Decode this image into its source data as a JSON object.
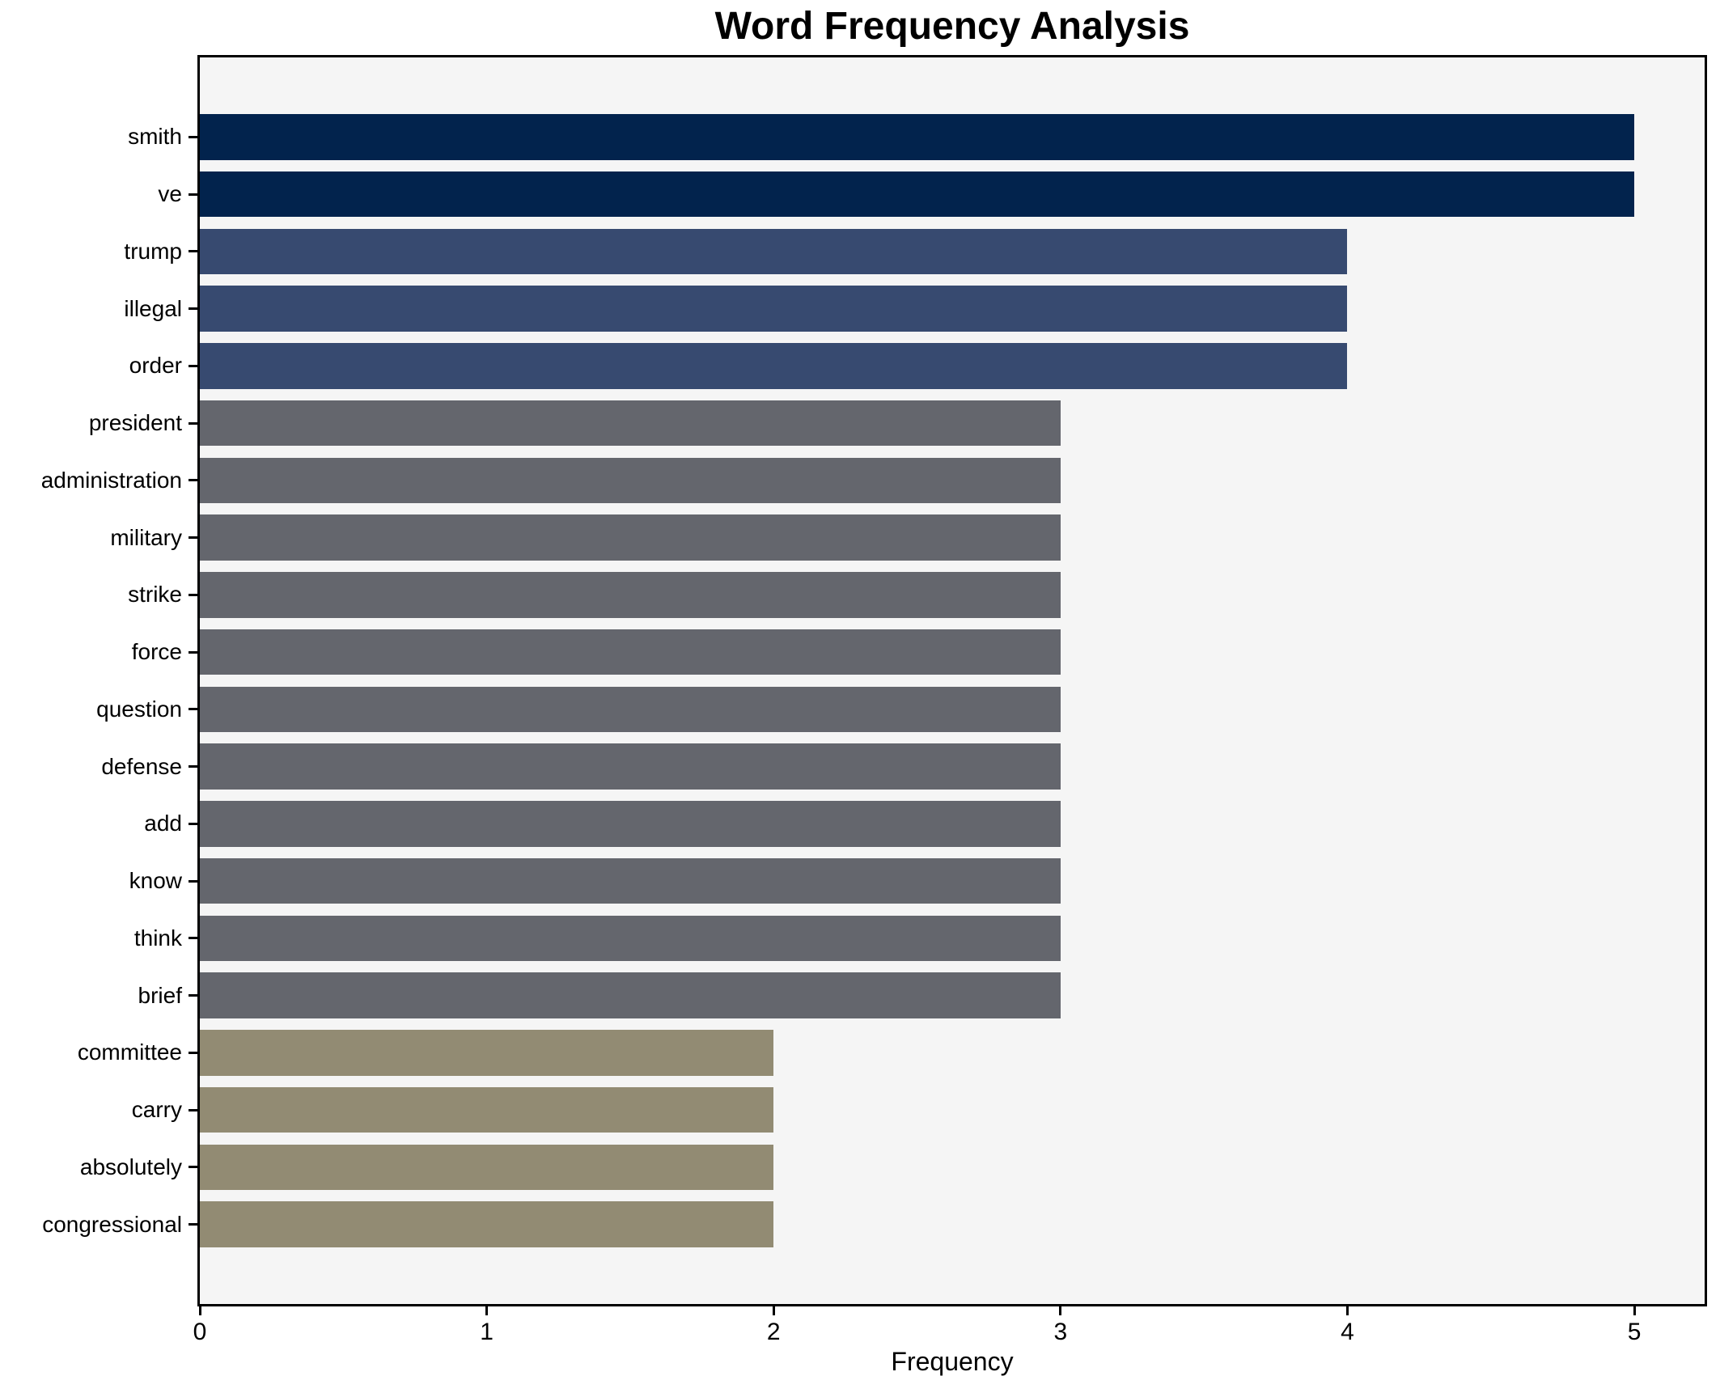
{
  "chart_data": {
    "type": "bar",
    "orientation": "horizontal",
    "title": "Word Frequency Analysis",
    "xlabel": "Frequency",
    "ylabel": "",
    "categories": [
      "smith",
      "ve",
      "trump",
      "illegal",
      "order",
      "president",
      "administration",
      "military",
      "strike",
      "force",
      "question",
      "defense",
      "add",
      "know",
      "think",
      "brief",
      "committee",
      "carry",
      "absolutely",
      "congressional"
    ],
    "values": [
      5,
      5,
      4,
      4,
      4,
      3,
      3,
      3,
      3,
      3,
      3,
      3,
      3,
      3,
      3,
      3,
      2,
      2,
      2,
      2
    ],
    "x_ticks": [
      "0",
      "1",
      "2",
      "3",
      "4",
      "5"
    ],
    "xlim": [
      0,
      5.245
    ],
    "grid": false,
    "legend": "none",
    "plot_background": "#f5f5f5",
    "spine_color": "#000000",
    "text_color": "#000000",
    "color_by_value": {
      "5": "#02234d",
      "4": "#374a70",
      "3": "#64666d",
      "2": "#928b73"
    }
  }
}
